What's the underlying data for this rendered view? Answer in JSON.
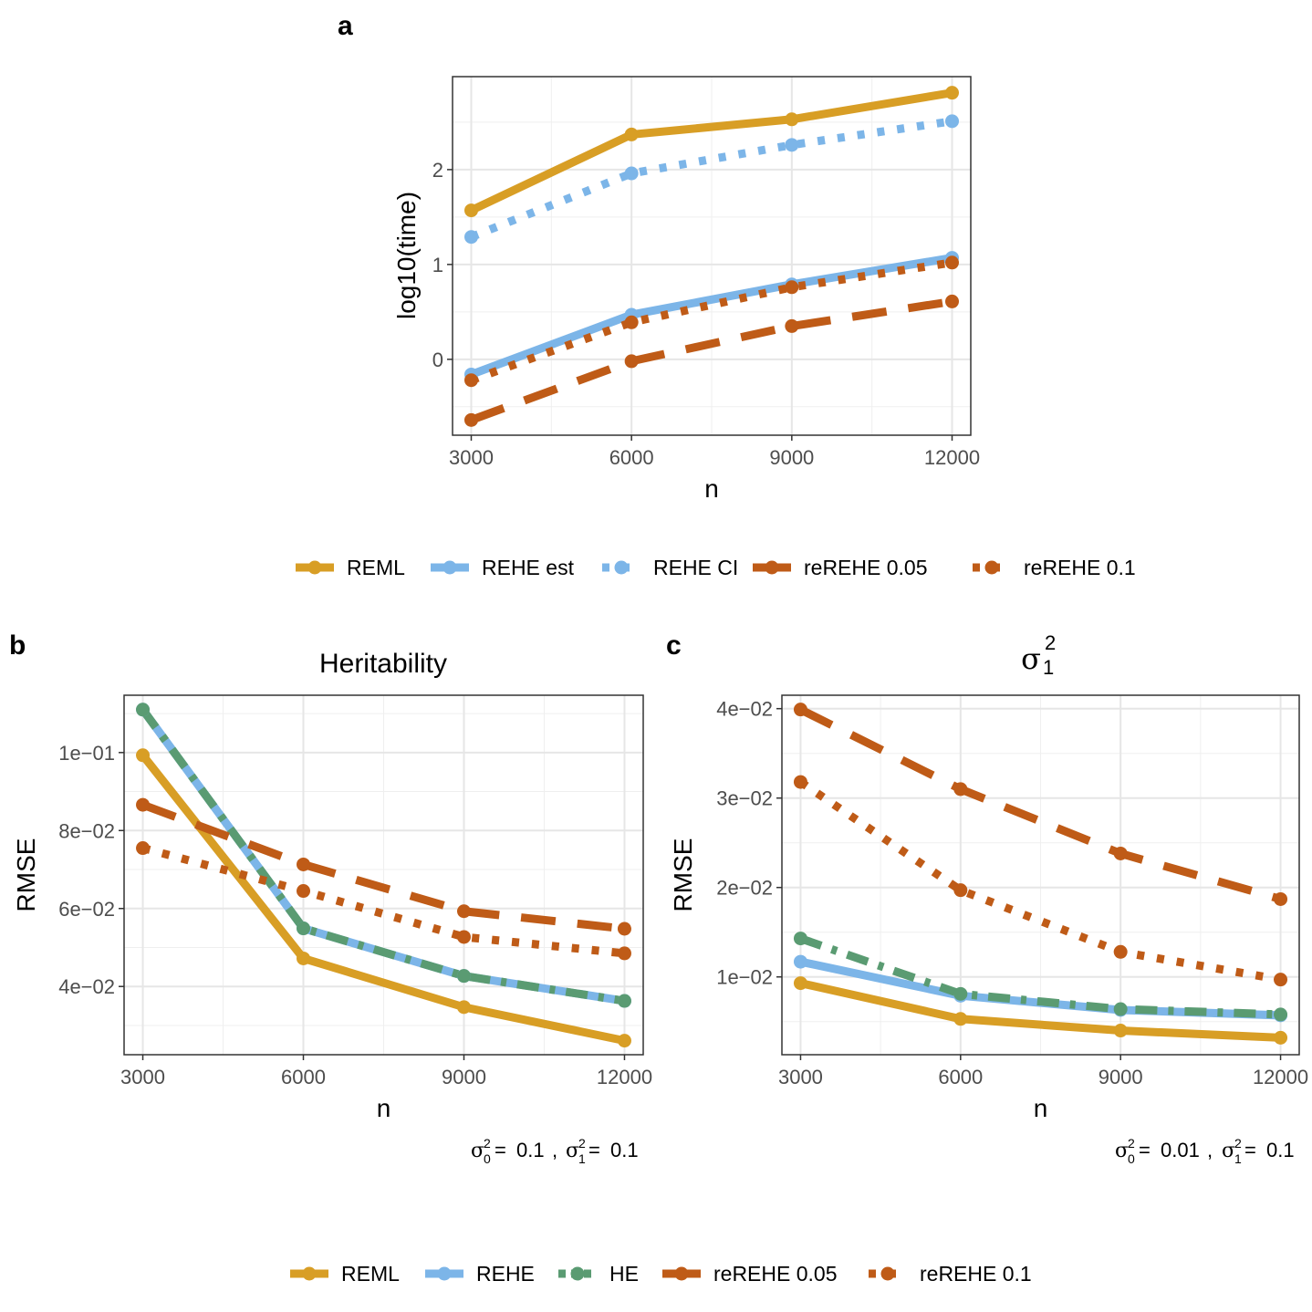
{
  "colors": {
    "REML": "#D89E25",
    "REHE": "#7CB5E8",
    "HE": "#5A9B72",
    "reREHE": "#BF5B17"
  },
  "chart_data": [
    {
      "panel": "a",
      "type": "line",
      "title": "",
      "xlabel": "n",
      "ylabel": "log10(time)",
      "x": [
        3000,
        6000,
        9000,
        12000
      ],
      "xticks": [
        "3000",
        "6000",
        "9000",
        "12000"
      ],
      "yticks": [
        {
          "v": 0,
          "label": "0"
        },
        {
          "v": 1,
          "label": "1"
        },
        {
          "v": 2,
          "label": "2"
        }
      ],
      "ylim": [
        -0.8,
        2.98
      ],
      "xlim": [
        2650,
        12350
      ],
      "grid": true,
      "series": [
        {
          "name": "REML",
          "color": "#D89E25",
          "style": "solid",
          "values": [
            1.57,
            2.37,
            2.53,
            2.81
          ]
        },
        {
          "name": "REHE est",
          "color": "#7CB5E8",
          "style": "solid",
          "values": [
            -0.16,
            0.47,
            0.79,
            1.07
          ]
        },
        {
          "name": "REHE CI",
          "color": "#7CB5E8",
          "style": "dotted",
          "values": [
            1.29,
            1.96,
            2.26,
            2.51
          ]
        },
        {
          "name": "reREHE 0.05",
          "color": "#BF5B17",
          "style": "longdash",
          "values": [
            -0.64,
            -0.02,
            0.35,
            0.61
          ]
        },
        {
          "name": "reREHE 0.1",
          "color": "#BF5B17",
          "style": "dotted",
          "values": [
            -0.22,
            0.39,
            0.76,
            1.02
          ]
        }
      ],
      "legend": {
        "placement": "bottom",
        "items": [
          "REML",
          "REHE est",
          "REHE CI",
          "reREHE 0.05",
          "reREHE 0.1"
        ]
      }
    },
    {
      "panel": "b",
      "type": "line",
      "title": "Heritability",
      "xlabel": "n",
      "ylabel": "RMSE",
      "caption": "σ0² = 0.1 , σ1² = 0.1",
      "x": [
        3000,
        6000,
        9000,
        12000
      ],
      "xticks": [
        "3000",
        "6000",
        "9000",
        "12000"
      ],
      "yticks": [
        {
          "v": 0.04,
          "label": "4e−02"
        },
        {
          "v": 0.06,
          "label": "6e−02"
        },
        {
          "v": 0.08,
          "label": "8e−02"
        },
        {
          "v": 0.1,
          "label": "1e−01"
        }
      ],
      "ylim": [
        0.0225,
        0.1147
      ],
      "xlim": [
        2650,
        12350
      ],
      "grid": true,
      "series": [
        {
          "name": "REML",
          "color": "#D89E25",
          "style": "solid",
          "values": [
            0.0993,
            0.0472,
            0.0347,
            0.0261
          ]
        },
        {
          "name": "REHE",
          "color": "#7CB5E8",
          "style": "solid",
          "values": [
            0.111,
            0.0549,
            0.0427,
            0.0363
          ]
        },
        {
          "name": "HE",
          "color": "#5A9B72",
          "style": "dashdot",
          "values": [
            0.111,
            0.0549,
            0.0427,
            0.0363
          ]
        },
        {
          "name": "reREHE 0.05",
          "color": "#BF5B17",
          "style": "longdash",
          "values": [
            0.0866,
            0.0713,
            0.0593,
            0.0548
          ]
        },
        {
          "name": "reREHE 0.1",
          "color": "#BF5B17",
          "style": "dotted",
          "values": [
            0.0755,
            0.0645,
            0.0527,
            0.0485
          ]
        }
      ]
    },
    {
      "panel": "c",
      "type": "line",
      "title": "σ1²",
      "xlabel": "n",
      "ylabel": "RMSE",
      "caption": "σ0² = 0.01 , σ1² = 0.1",
      "x": [
        3000,
        6000,
        9000,
        12000
      ],
      "xticks": [
        "3000",
        "6000",
        "9000",
        "12000"
      ],
      "yticks": [
        {
          "v": 0.01,
          "label": "1e−02"
        },
        {
          "v": 0.02,
          "label": "2e−02"
        },
        {
          "v": 0.03,
          "label": "3e−02"
        },
        {
          "v": 0.04,
          "label": "4e−02"
        }
      ],
      "ylim": [
        0.0013,
        0.0415
      ],
      "xlim": [
        2650,
        12350
      ],
      "grid": true,
      "series": [
        {
          "name": "REML",
          "color": "#D89E25",
          "style": "solid",
          "values": [
            0.0093,
            0.0053,
            0.004,
            0.0032
          ]
        },
        {
          "name": "REHE",
          "color": "#7CB5E8",
          "style": "solid",
          "values": [
            0.0117,
            0.0079,
            0.0063,
            0.0057
          ]
        },
        {
          "name": "HE",
          "color": "#5A9B72",
          "style": "dashdot",
          "values": [
            0.0143,
            0.0081,
            0.0064,
            0.0058
          ]
        },
        {
          "name": "reREHE 0.05",
          "color": "#BF5B17",
          "style": "longdash",
          "values": [
            0.0399,
            0.031,
            0.0238,
            0.0187
          ]
        },
        {
          "name": "reREHE 0.1",
          "color": "#BF5B17",
          "style": "dotted",
          "values": [
            0.0318,
            0.0197,
            0.0128,
            0.0097
          ]
        }
      ]
    }
  ],
  "panel_labels": {
    "a": "a",
    "b": "b",
    "c": "c"
  },
  "legend_top": [
    {
      "label": "REML",
      "color": "#D89E25",
      "style": "solid"
    },
    {
      "label": "REHE est",
      "color": "#7CB5E8",
      "style": "solid"
    },
    {
      "label": "REHE CI",
      "color": "#7CB5E8",
      "style": "dotted"
    },
    {
      "label": "reREHE 0.05",
      "color": "#BF5B17",
      "style": "longdash"
    },
    {
      "label": "reREHE 0.1",
      "color": "#BF5B17",
      "style": "dotted"
    }
  ],
  "legend_bottom": [
    {
      "label": "REML",
      "color": "#D89E25",
      "style": "solid"
    },
    {
      "label": "REHE",
      "color": "#7CB5E8",
      "style": "solid"
    },
    {
      "label": "HE",
      "color": "#5A9B72",
      "style": "dashdot"
    },
    {
      "label": "reREHE 0.05",
      "color": "#BF5B17",
      "style": "longdash"
    },
    {
      "label": "reREHE 0.1",
      "color": "#BF5B17",
      "style": "dotted"
    }
  ],
  "captions": {
    "b": {
      "s0": "0.1",
      "s1": "0.1"
    },
    "c": {
      "s0": "0.01",
      "s1": "0.1"
    }
  }
}
